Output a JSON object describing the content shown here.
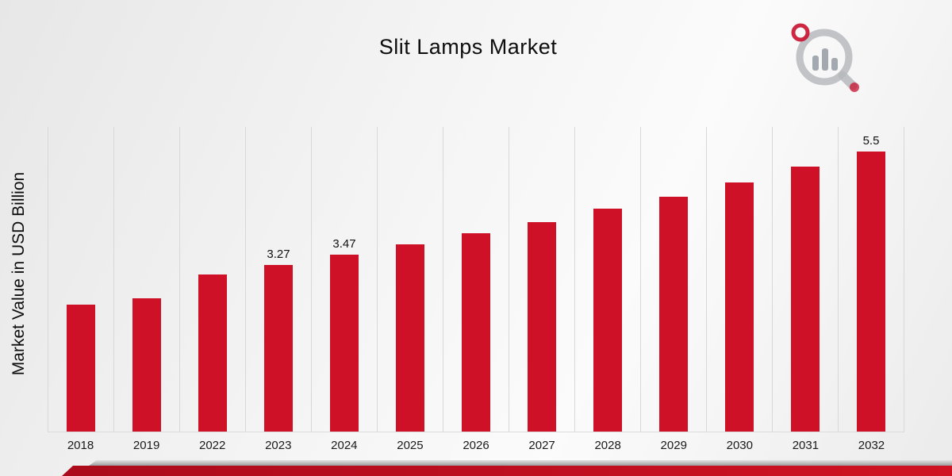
{
  "title": "Slit Lamps Market",
  "ylabel": "Market Value in USD Billion",
  "colors": {
    "bar": "#ce1126",
    "grid": "#d8d8d8",
    "ribbon_red": "#c40f20",
    "ribbon_gray": "#a8a8a8",
    "logo_gray": "#b7babd",
    "logo_red": "#c8102e"
  },
  "chart_data": {
    "type": "bar",
    "title": "Slit Lamps Market",
    "xlabel": "",
    "ylabel": "Market Value in USD Billion",
    "ylim": [
      0,
      6
    ],
    "grid": "vertical-only",
    "legend": "none",
    "categories": [
      "2018",
      "2019",
      "2022",
      "2023",
      "2024",
      "2025",
      "2026",
      "2027",
      "2028",
      "2029",
      "2030",
      "2031",
      "2032"
    ],
    "values": [
      2.5,
      2.62,
      3.08,
      3.27,
      3.47,
      3.68,
      3.9,
      4.12,
      4.38,
      4.62,
      4.9,
      5.2,
      5.5
    ],
    "point_labels": [
      "",
      "",
      "",
      "3.27",
      "3.47",
      "",
      "",
      "",
      "",
      "",
      "",
      "",
      "5.5"
    ],
    "bar_color": "#ce1126"
  }
}
